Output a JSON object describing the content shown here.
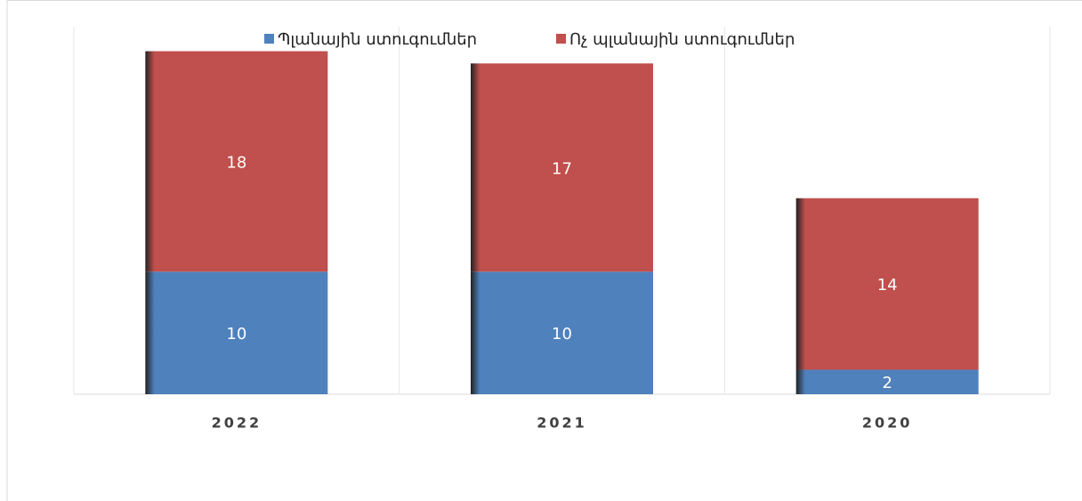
{
  "chart_data": {
    "type": "stacked_bar",
    "categories": [
      "2022",
      "2021",
      "2020"
    ],
    "series": [
      {
        "name": "Պլանային ստուգումներ",
        "color": "#4f81bd",
        "values": [
          10,
          10,
          2
        ]
      },
      {
        "name": "Ոչ պլանային ստուգումներ",
        "color": "#c0504d",
        "values": [
          18,
          17,
          14
        ]
      }
    ],
    "ylim": [
      0,
      30
    ]
  }
}
